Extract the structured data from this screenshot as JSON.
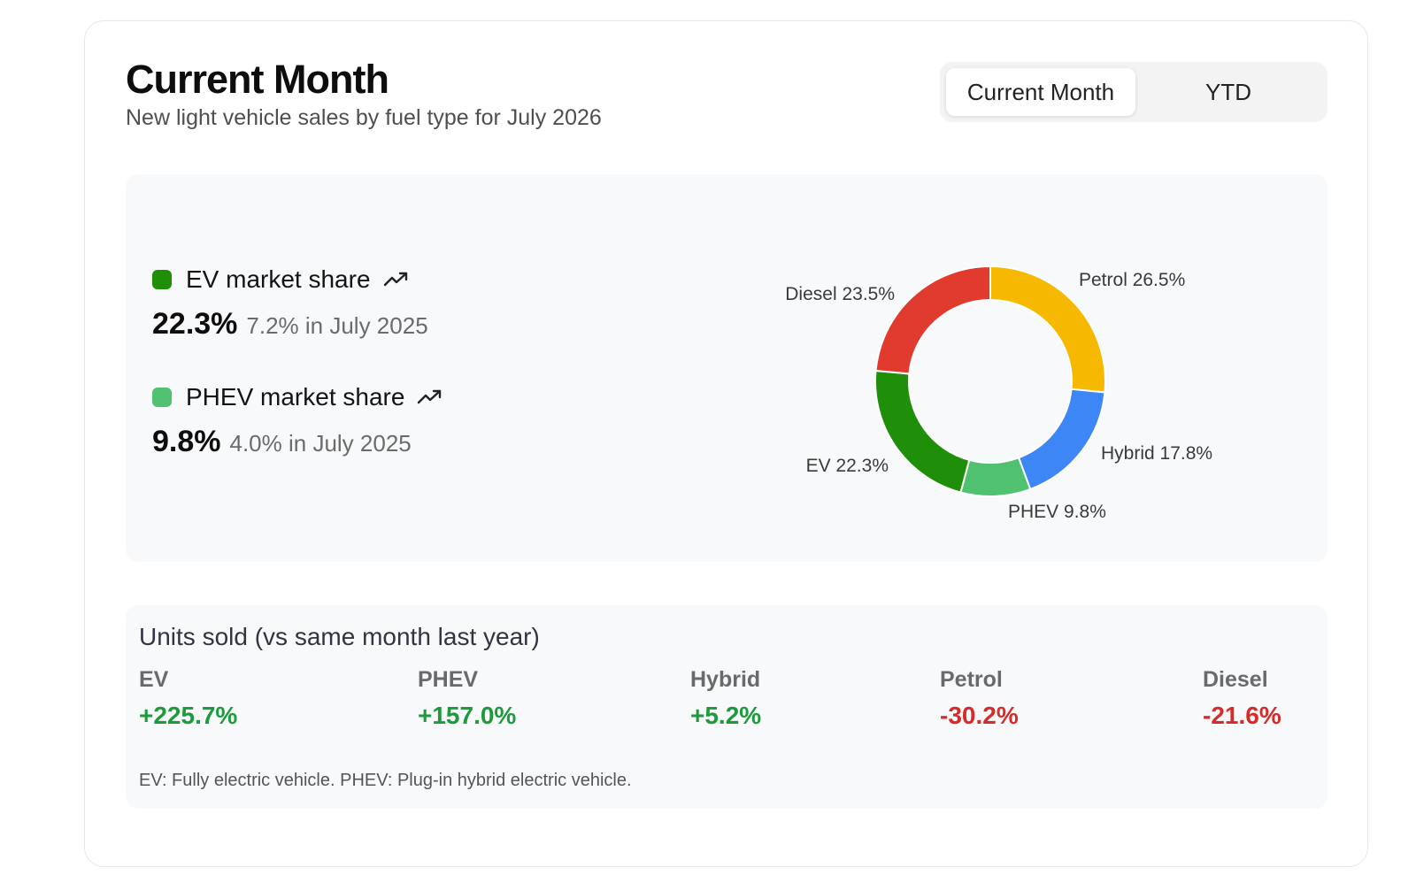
{
  "header": {
    "title": "Current Month",
    "subtitle": "New light vehicle sales by fuel type for July 2026"
  },
  "toggle": {
    "options": [
      "Current Month",
      "YTD"
    ],
    "selected": "Current Month"
  },
  "market_share": [
    {
      "label": "EV market share",
      "value": "22.3%",
      "previous": "7.2% in July 2025",
      "color": "#1f8f0a",
      "trend_icon": "trending-up-icon"
    },
    {
      "label": "PHEV market share",
      "value": "9.8%",
      "previous": "4.0% in July 2025",
      "color": "#4fc171",
      "trend_icon": "trending-up-icon"
    }
  ],
  "chart_data": {
    "type": "pie",
    "slices": [
      {
        "label": "Petrol",
        "value": 26.5,
        "display": "Petrol 26.5%",
        "color": "#f6b800"
      },
      {
        "label": "Hybrid",
        "value": 17.8,
        "display": "Hybrid 17.8%",
        "color": "#3d86f5"
      },
      {
        "label": "PHEV",
        "value": 9.8,
        "display": "PHEV 9.8%",
        "color": "#4fc171"
      },
      {
        "label": "EV",
        "value": 22.3,
        "display": "EV 22.3%",
        "color": "#1f8f0a"
      },
      {
        "label": "Diesel",
        "value": 23.5,
        "display": "Diesel 23.5%",
        "color": "#e03b2e"
      }
    ]
  },
  "units": {
    "title": "Units sold (vs same month last year)",
    "items": [
      {
        "name": "EV",
        "change": "+225.7%",
        "trend": "pos"
      },
      {
        "name": "PHEV",
        "change": "+157.0%",
        "trend": "pos"
      },
      {
        "name": "Hybrid",
        "change": "+5.2%",
        "trend": "pos"
      },
      {
        "name": "Petrol",
        "change": "-30.2%",
        "trend": "neg"
      },
      {
        "name": "Diesel",
        "change": "-21.6%",
        "trend": "neg"
      }
    ],
    "footnote": "EV: Fully electric vehicle. PHEV: Plug-in hybrid electric vehicle."
  }
}
